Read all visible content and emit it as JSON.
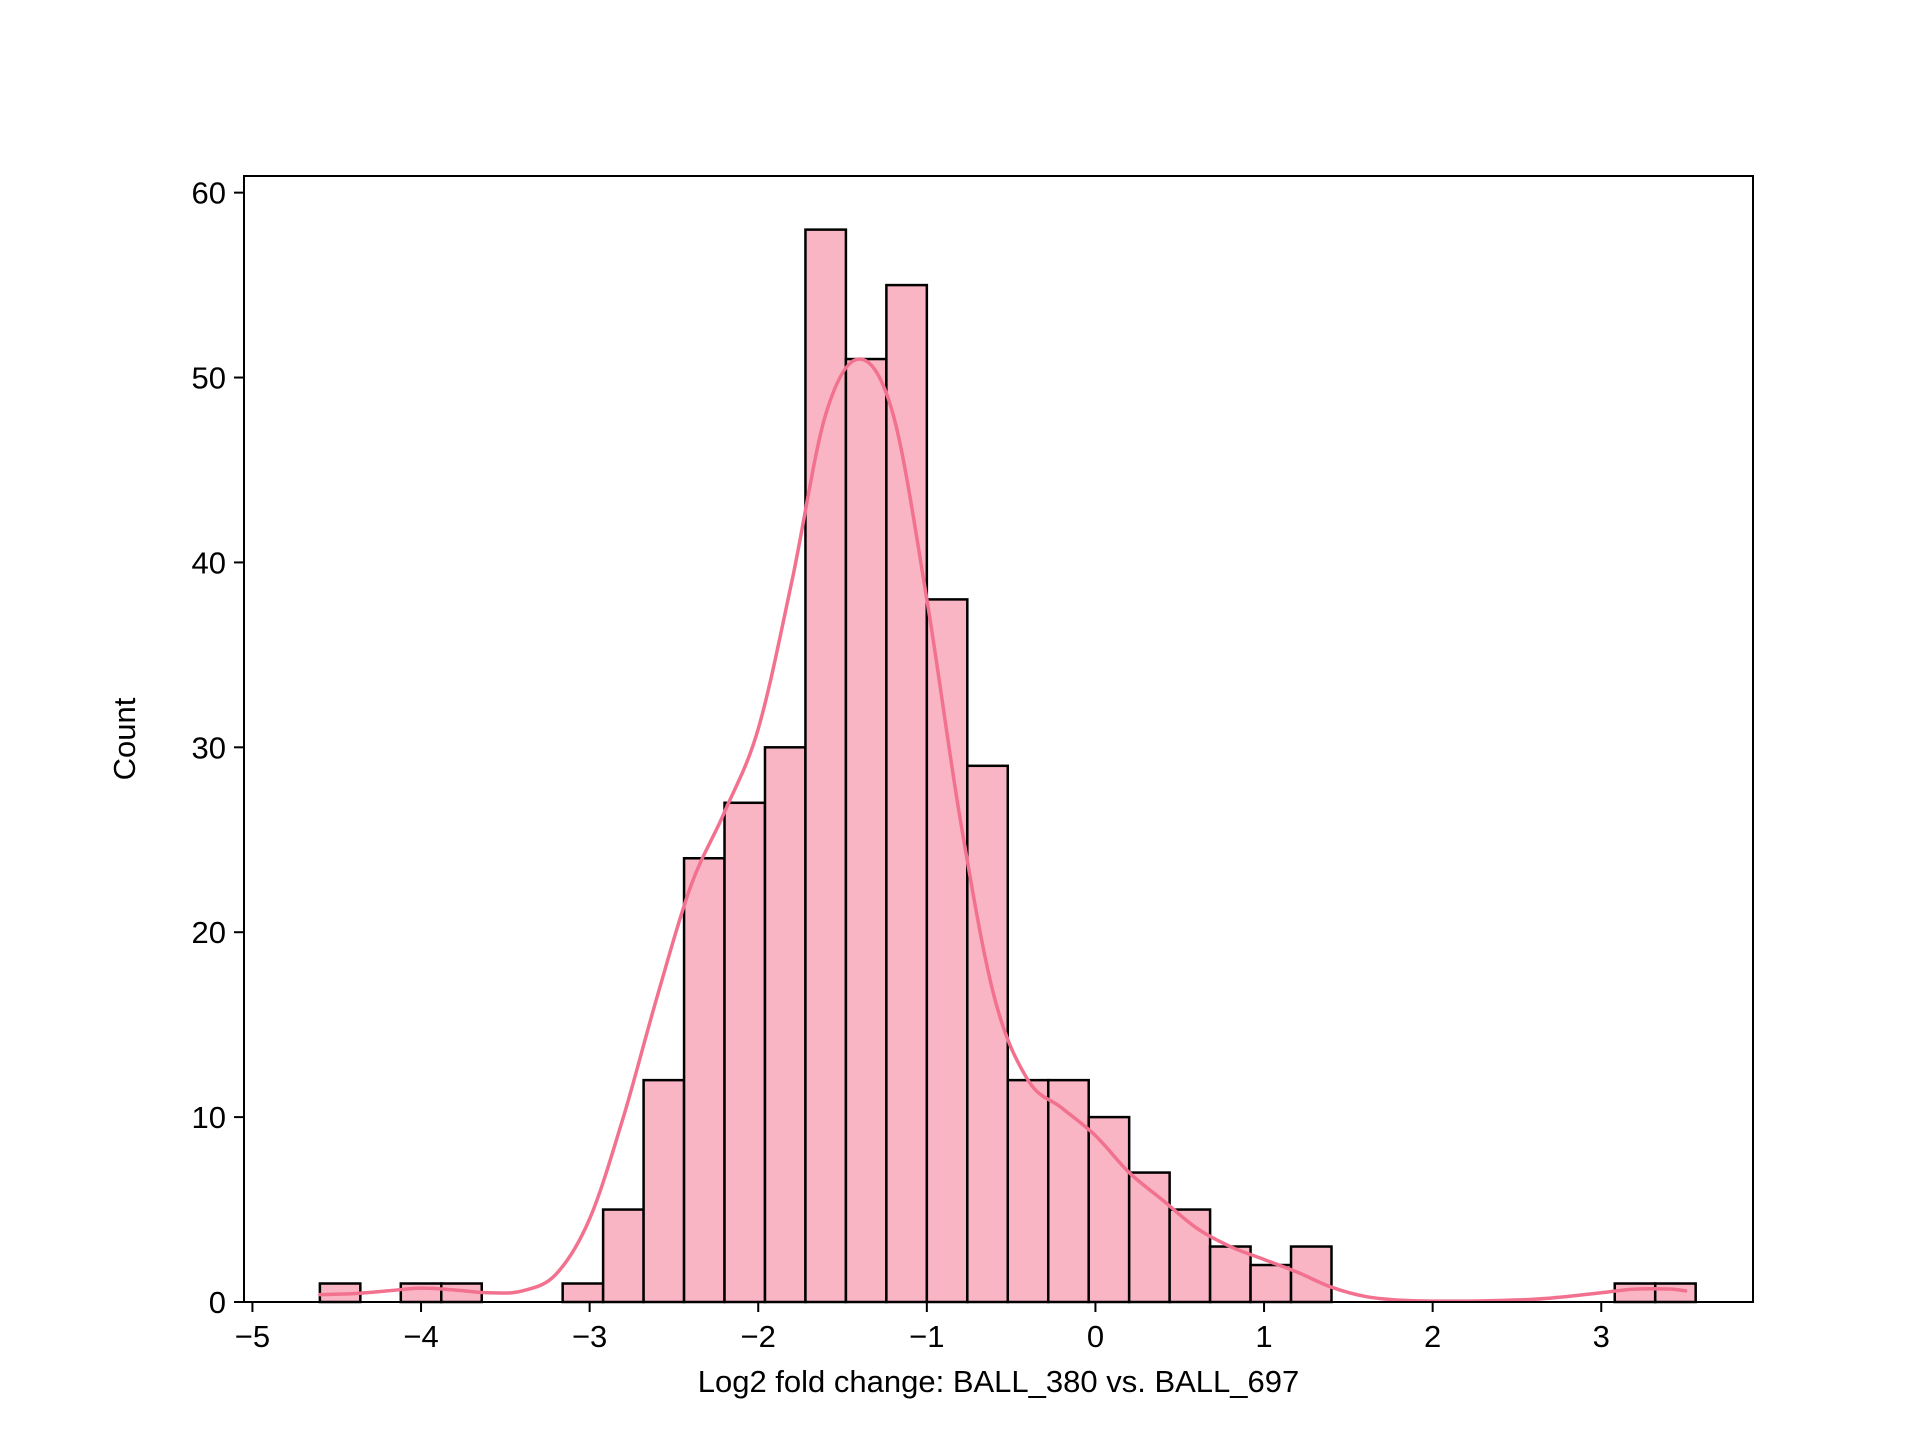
{
  "chart_data": {
    "type": "histogram",
    "xlabel": "Log2 fold change: BALL_380 vs. BALL_697",
    "ylabel": "Count",
    "xlim": [
      -5.05,
      3.9
    ],
    "ylim": [
      0,
      60.9
    ],
    "x_ticks": [
      -5,
      -4,
      -3,
      -2,
      -1,
      0,
      1,
      2,
      3
    ],
    "x_tick_labels": [
      "−5",
      "−4",
      "−3",
      "−2",
      "−1",
      "0",
      "1",
      "2",
      "3"
    ],
    "y_ticks": [
      0,
      10,
      20,
      30,
      40,
      50,
      60
    ],
    "y_tick_labels": [
      "0",
      "10",
      "20",
      "30",
      "40",
      "50",
      "60"
    ],
    "bin_width": 0.24,
    "bins": [
      {
        "x0": -4.6,
        "x1": -4.36,
        "count": 1
      },
      {
        "x0": -4.36,
        "x1": -4.12,
        "count": 0
      },
      {
        "x0": -4.12,
        "x1": -3.88,
        "count": 1
      },
      {
        "x0": -3.88,
        "x1": -3.64,
        "count": 1
      },
      {
        "x0": -3.64,
        "x1": -3.4,
        "count": 0
      },
      {
        "x0": -3.4,
        "x1": -3.16,
        "count": 0
      },
      {
        "x0": -3.16,
        "x1": -2.92,
        "count": 1
      },
      {
        "x0": -2.92,
        "x1": -2.68,
        "count": 5
      },
      {
        "x0": -2.68,
        "x1": -2.44,
        "count": 12
      },
      {
        "x0": -2.44,
        "x1": -2.2,
        "count": 24
      },
      {
        "x0": -2.2,
        "x1": -1.96,
        "count": 27
      },
      {
        "x0": -1.96,
        "x1": -1.72,
        "count": 30
      },
      {
        "x0": -1.72,
        "x1": -1.48,
        "count": 58
      },
      {
        "x0": -1.48,
        "x1": -1.24,
        "count": 51
      },
      {
        "x0": -1.24,
        "x1": -1.0,
        "count": 55
      },
      {
        "x0": -1.0,
        "x1": -0.76,
        "count": 38
      },
      {
        "x0": -0.76,
        "x1": -0.52,
        "count": 29
      },
      {
        "x0": -0.52,
        "x1": -0.28,
        "count": 12
      },
      {
        "x0": -0.28,
        "x1": -0.04,
        "count": 12
      },
      {
        "x0": -0.04,
        "x1": 0.2,
        "count": 10
      },
      {
        "x0": 0.2,
        "x1": 0.44,
        "count": 7
      },
      {
        "x0": 0.44,
        "x1": 0.68,
        "count": 5
      },
      {
        "x0": 0.68,
        "x1": 0.92,
        "count": 3
      },
      {
        "x0": 0.92,
        "x1": 1.16,
        "count": 2
      },
      {
        "x0": 1.16,
        "x1": 1.4,
        "count": 3
      },
      {
        "x0": 1.4,
        "x1": 1.64,
        "count": 0
      },
      {
        "x0": 1.64,
        "x1": 1.88,
        "count": 0
      },
      {
        "x0": 1.88,
        "x1": 2.12,
        "count": 0
      },
      {
        "x0": 2.12,
        "x1": 2.36,
        "count": 0
      },
      {
        "x0": 2.36,
        "x1": 2.6,
        "count": 0
      },
      {
        "x0": 2.6,
        "x1": 2.84,
        "count": 0
      },
      {
        "x0": 2.84,
        "x1": 3.08,
        "count": 0
      },
      {
        "x0": 3.08,
        "x1": 3.32,
        "count": 1
      },
      {
        "x0": 3.32,
        "x1": 3.56,
        "count": 1
      }
    ],
    "kde": {
      "x": [
        -4.6,
        -4.4,
        -4.2,
        -4.0,
        -3.8,
        -3.6,
        -3.4,
        -3.2,
        -3.0,
        -2.8,
        -2.6,
        -2.4,
        -2.2,
        -2.0,
        -1.8,
        -1.6,
        -1.4,
        -1.2,
        -1.0,
        -0.8,
        -0.6,
        -0.4,
        -0.2,
        0.0,
        0.2,
        0.4,
        0.6,
        0.8,
        1.0,
        1.2,
        1.4,
        1.6,
        1.8,
        2.0,
        2.2,
        2.4,
        2.6,
        2.8,
        3.0,
        3.2,
        3.4,
        3.5
      ],
      "y": [
        0.4,
        0.45,
        0.6,
        0.75,
        0.65,
        0.5,
        0.6,
        1.5,
        4.5,
        10,
        16.5,
        22.5,
        26.5,
        31,
        39,
        48,
        51,
        48,
        38,
        26,
        16.5,
        12,
        10.5,
        9,
        7,
        5.5,
        4,
        3,
        2.3,
        1.6,
        0.8,
        0.3,
        0.1,
        0.05,
        0.05,
        0.08,
        0.15,
        0.3,
        0.5,
        0.7,
        0.7,
        0.6
      ]
    },
    "colors": {
      "bar_fill": "#f9b5c4",
      "bar_edge": "#000000",
      "kde_line": "#f2718f",
      "axes": "#000000"
    }
  }
}
